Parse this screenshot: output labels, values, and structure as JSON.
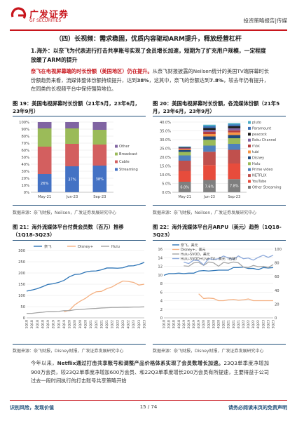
{
  "header": {
    "logo_cn": "广发证券",
    "logo_en": "GF SECURITIES",
    "report_type": "投资策略报告|传媒"
  },
  "section_title": "（四）长视频：需求稳固，优质内容驱动ARM提升，释放经营杠杆",
  "sub_title": "1.海外：以奈飞为代表进行打击共享账号实现了会员增长加速，短期为了扩充用户规模，一定程度放缓了ARM的提升",
  "para1": {
    "lead": "奈飞在电视屏幕端的时长份额（美国地区）仍在提升。",
    "text_a": "从奈飞财报披露的Neilsen统计的美国TV端屏幕时长份额趋势来看，流媒体整体份额持续提升，达到",
    "bold_a": "38%",
    "text_b": "，这其中，奈飞的份额达到",
    "bold_b": "7.8%",
    "text_c": "，较去年仍有提升，在同类的长视频平台中保持强势地位。"
  },
  "figures": {
    "f19": {
      "title": "图 19：美国电视屏幕时长份额（21年5月，23年6月，23年9月）",
      "source": "数据来源：奈飞财报，Neilsen，广发证券发展研究中心"
    },
    "f20": {
      "title": "图 20：美国电视屏幕时长份额，各流媒体份额（21年5月，23年6月，23年9月）",
      "source": "数据来源：奈飞财报，Neilsen，广发证券发展研究中心"
    },
    "f21": {
      "title": "图 21：海外流媒体平台付费会员数（百万）推移（1Q18-3Q23）",
      "source": "数据来源：奈飞财报，Disney财报，广发证券发展研究中心"
    },
    "f22": {
      "title": "图 22：海外流媒体平台月ARPU（美元）趋势（1Q18-3Q23）",
      "source": "数据来源：奈飞财报，Disney财报，广发证券发展研究中心"
    }
  },
  "para2": {
    "text_a": "今年以来，",
    "bold_a": "Netflix通过打击共享账号和调整产品价格体系实现了会员数增长加速。",
    "text_b": "23Q3单季度净增加900万会员，较23Q2单季度净增加600万会员、和22Q3单季度增长200万会员有所提速，主要得益于公司过去一段时间执行的打击账号共享策略开始"
  },
  "chart_data": [
    {
      "type": "bar",
      "stacked": true,
      "categories": [
        "May-21",
        "Jun-23",
        "Sep-23"
      ],
      "ylim": [
        0,
        100
      ],
      "yticks": [
        "0%",
        "10%",
        "20%",
        "30%",
        "40%",
        "50%",
        "60%",
        "70%",
        "80%",
        "90%",
        "100%"
      ],
      "legend_position": "right",
      "series": [
        {
          "name": "Streaming",
          "values": [
            26,
            37,
            38
          ],
          "color": "#4472c4"
        },
        {
          "name": "Cable",
          "values": [
            39,
            32,
            30
          ],
          "color": "#d35f5f"
        },
        {
          "name": "Broadcast",
          "values": [
            26,
            22,
            21
          ],
          "color": "#9bbb59"
        },
        {
          "name": "Other",
          "values": [
            9,
            9,
            11
          ],
          "color": "#8064a2"
        }
      ],
      "data_labels": [
        "26%",
        "37%",
        "38%"
      ]
    },
    {
      "type": "bar",
      "stacked": true,
      "categories": [
        "May-21",
        "Jun-23",
        "Sep-23"
      ],
      "ylim": [
        0,
        40
      ],
      "yticks": [
        "0.0%",
        "5.0%",
        "10.0%",
        "15.0%",
        "20.0%",
        "25.0%",
        "30.0%",
        "35.0%",
        "40.0%"
      ],
      "legend_position": "right",
      "series": [
        {
          "name": "Other Streaming",
          "values": [
            6.0,
            7.0,
            7.5
          ],
          "color": "#7f7f7f"
        },
        {
          "name": "YouTube",
          "values": [
            6.0,
            8.5,
            8.9
          ],
          "color": "#e74c3c"
        },
        {
          "name": "NETFLIX",
          "values": [
            6.0,
            7.6,
            7.8
          ],
          "color": "#c0504d"
        },
        {
          "name": "Prime video",
          "values": [
            3.0,
            3.5,
            3.4
          ],
          "color": "#4f81bd"
        },
        {
          "name": "Hulu",
          "values": [
            2.0,
            3.3,
            3.2
          ],
          "color": "#9bbb59"
        },
        {
          "name": "Disney",
          "values": [
            1.0,
            1.9,
            1.8
          ],
          "color": "#1f497d"
        },
        {
          "name": "tubi",
          "values": [
            0.5,
            1.4,
            1.5
          ],
          "color": "#f79646"
        },
        {
          "name": "max",
          "values": [
            0.5,
            1.3,
            1.2
          ],
          "color": "#b63c3c"
        },
        {
          "name": "Roku Channel",
          "values": [
            0.3,
            1.1,
            1.2
          ],
          "color": "#8064a2"
        },
        {
          "name": "peacock",
          "values": [
            0.3,
            1.1,
            1.2
          ],
          "color": "#1a1a1a"
        },
        {
          "name": "Paramount",
          "values": [
            0.3,
            0.9,
            0.9
          ],
          "color": "#3b6fb6"
        },
        {
          "name": "pluto",
          "values": [
            0.2,
            0.9,
            0.8
          ],
          "color": "#4bacc6"
        }
      ],
      "data_labels": [
        "6.0%",
        "7.6%",
        "7.8%"
      ]
    },
    {
      "type": "line",
      "x": [
        "1Q18",
        "2Q18",
        "3Q18",
        "4Q18",
        "1Q19",
        "2Q19",
        "3Q19",
        "4Q19",
        "1Q20",
        "2Q20",
        "3Q20",
        "4Q20",
        "1Q21",
        "2Q21",
        "3Q21",
        "4Q21",
        "1Q22",
        "2Q22",
        "3Q22",
        "4Q22",
        "1Q23",
        "2Q23",
        "3Q23"
      ],
      "ylim": [
        0,
        300
      ],
      "yticks": [
        "0",
        "50",
        "100",
        "150",
        "200",
        "250",
        "300"
      ],
      "legend_position": "top",
      "series": [
        {
          "name": "奈飞",
          "color": "#2e75b6",
          "values": [
            119,
            124,
            130,
            139,
            149,
            152,
            158,
            167,
            183,
            193,
            195,
            204,
            208,
            209,
            214,
            222,
            222,
            221,
            223,
            231,
            232,
            238,
            247
          ]
        },
        {
          "name": "Disney+",
          "color": "#f4b183",
          "values": [
            null,
            null,
            null,
            null,
            null,
            null,
            null,
            27,
            34,
            58,
            74,
            87,
            104,
            116,
            118,
            130,
            138,
            152,
            164,
            162,
            158,
            146,
            150
          ]
        },
        {
          "name": "Hulu",
          "color": "#a5a5a5",
          "values": [
            20,
            20,
            23,
            25,
            28,
            28,
            29,
            32,
            32,
            36,
            37,
            39,
            41,
            42,
            44,
            45,
            46,
            46,
            47,
            47,
            48,
            48,
            49
          ]
        }
      ]
    },
    {
      "type": "line",
      "x": [
        "1Q18",
        "2Q18",
        "3Q18",
        "4Q18",
        "1Q19",
        "2Q19",
        "3Q19",
        "4Q19",
        "1Q20",
        "2Q20",
        "3Q20",
        "4Q20",
        "1Q21",
        "2Q21",
        "3Q21",
        "4Q21",
        "1Q22",
        "2Q22",
        "3Q22",
        "4Q22",
        "1Q23",
        "2Q23",
        "3Q23"
      ],
      "ylim_left": [
        0,
        16
      ],
      "yticks_left": [
        "0",
        "2",
        "4",
        "6",
        "8",
        "10",
        "12",
        "14",
        "16"
      ],
      "ylim_right": [
        0,
        100
      ],
      "yticks_right": [
        "0",
        "20",
        "40",
        "60",
        "80",
        "100"
      ],
      "legend_position": "top-left",
      "series": [
        {
          "name": "奈飞，美元",
          "axis": "left",
          "color": "#2e75b6",
          "values": [
            9.9,
            10.3,
            10.3,
            10.4,
            10.3,
            10.4,
            10.4,
            10.9,
            11.0,
            10.9,
            11.0,
            11.1,
            11.1,
            11.1,
            11.7,
            11.7,
            11.8,
            11.5,
            11.5,
            11.2,
            11.7,
            11.6,
            11.7
          ]
        },
        {
          "name": "Disney+，美元",
          "axis": "left",
          "color": "#f4b183",
          "values": [
            null,
            null,
            null,
            null,
            null,
            null,
            null,
            5.6,
            4.5,
            4.6,
            4.5,
            4.0,
            4.0,
            4.2,
            4.3,
            4.1,
            4.2,
            4.4,
            4.0,
            4.0,
            4.0,
            4.0,
            4.0
          ]
        },
        {
          "name": "Hulu-SVOD，美元",
          "axis": "left",
          "color": "#a5a5a5",
          "values": [
            null,
            null,
            null,
            null,
            12.1,
            12.0,
            12.8,
            12.9,
            12.2,
            13.0,
            12.8,
            12.0,
            12.9,
            12.7,
            13.0,
            12.8,
            11.8,
            11.7,
            12.2,
            11.9,
            12.0,
            11.7,
            12.4
          ]
        },
        {
          "name": "Hulu-SVOD+Live TV，美元（右轴）",
          "axis": "right",
          "color": "#8eaadb",
          "values": [
            null,
            null,
            null,
            null,
            81,
            79,
            84,
            83,
            77,
            86,
            85,
            86,
            90,
            87,
            85,
            90,
            86,
            87,
            84,
            88,
            91,
            88,
            91
          ]
        }
      ]
    }
  ]
}
